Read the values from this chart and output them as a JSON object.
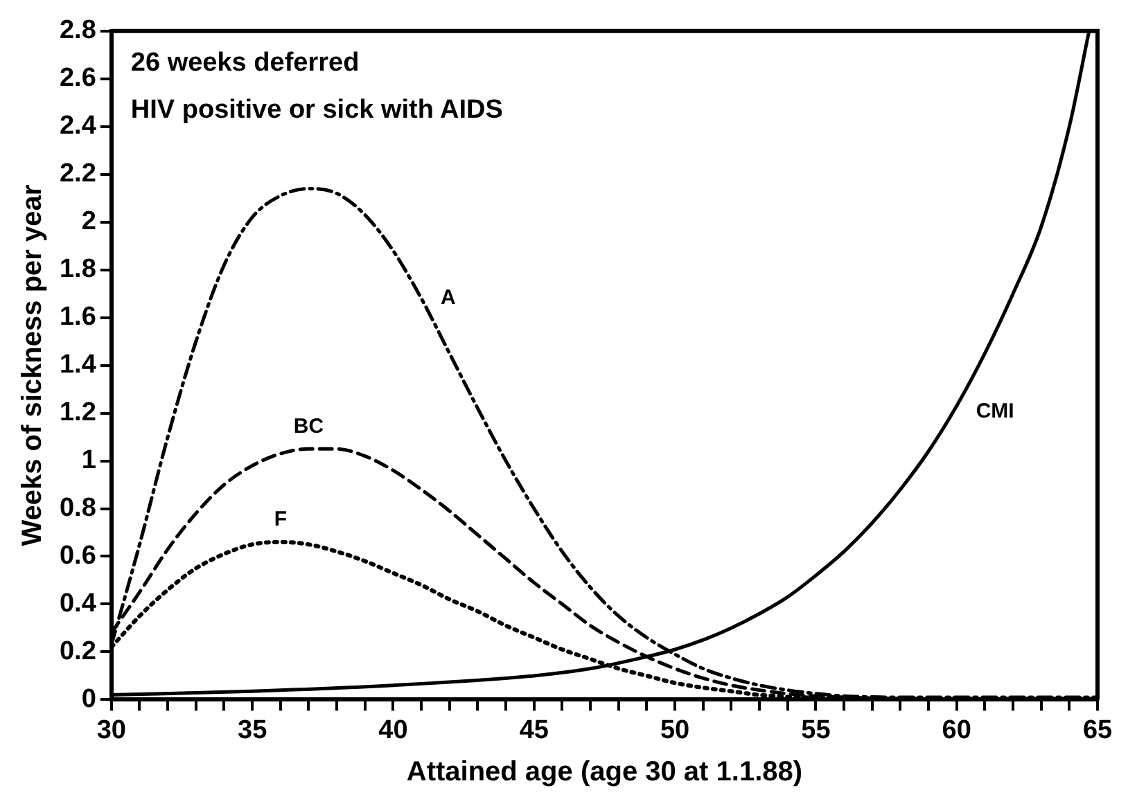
{
  "chart_data": {
    "type": "line",
    "xlabel": "Attained age (age 30 at 1.1.88)",
    "ylabel": "Weeks of sickness per year",
    "annotations": [
      "26 weeks deferred",
      "HIV positive or sick with AIDS"
    ],
    "series": [
      {
        "name": "A",
        "color": "#000000",
        "line_style": "dashed",
        "x": [
          30,
          31,
          32,
          33,
          34,
          35,
          36,
          37,
          38,
          39,
          40,
          41,
          42,
          43,
          44,
          45,
          46,
          47,
          48,
          49,
          50,
          51,
          52,
          53,
          54,
          55,
          56,
          58,
          60,
          65
        ],
        "values": [
          0.23,
          0.65,
          1.1,
          1.5,
          1.82,
          2.02,
          2.11,
          2.14,
          2.12,
          2.03,
          1.88,
          1.68,
          1.45,
          1.22,
          1.0,
          0.8,
          0.62,
          0.47,
          0.35,
          0.26,
          0.19,
          0.13,
          0.09,
          0.06,
          0.04,
          0.025,
          0.015,
          0.01,
          0.01,
          0.01
        ]
      },
      {
        "name": "BC",
        "color": "#000000",
        "line_style": "dashed",
        "x": [
          30,
          31,
          32,
          33,
          34,
          35,
          36,
          37,
          38,
          39,
          40,
          41,
          42,
          43,
          44,
          45,
          46,
          47,
          48,
          49,
          50,
          51,
          52,
          53,
          54,
          55,
          56,
          58,
          60,
          65
        ],
        "values": [
          0.28,
          0.45,
          0.63,
          0.78,
          0.9,
          0.98,
          1.03,
          1.05,
          1.05,
          1.02,
          0.96,
          0.88,
          0.79,
          0.69,
          0.59,
          0.49,
          0.4,
          0.31,
          0.24,
          0.18,
          0.13,
          0.09,
          0.06,
          0.04,
          0.025,
          0.015,
          0.01,
          0.005,
          0.005,
          0.005
        ]
      },
      {
        "name": "F",
        "color": "#000000",
        "line_style": "dotted",
        "x": [
          30,
          31,
          32,
          33,
          34,
          35,
          36,
          37,
          38,
          39,
          40,
          41,
          42,
          43,
          44,
          45,
          46,
          47,
          48,
          49,
          50,
          51,
          52,
          53,
          54,
          55,
          56,
          58,
          60,
          65
        ],
        "values": [
          0.22,
          0.35,
          0.46,
          0.55,
          0.61,
          0.65,
          0.66,
          0.65,
          0.62,
          0.58,
          0.53,
          0.48,
          0.42,
          0.37,
          0.31,
          0.26,
          0.21,
          0.17,
          0.13,
          0.1,
          0.07,
          0.05,
          0.035,
          0.02,
          0.012,
          0.008,
          0.005,
          0.003,
          0.002,
          0.002
        ]
      },
      {
        "name": "CMI",
        "color": "#000000",
        "line_style": "solid",
        "x": [
          30,
          35,
          40,
          45,
          47,
          49,
          50,
          51,
          52,
          53,
          54,
          55,
          56,
          57,
          58,
          59,
          60,
          61,
          62,
          63,
          64,
          64.7
        ],
        "values": [
          0.02,
          0.035,
          0.06,
          0.1,
          0.13,
          0.18,
          0.21,
          0.25,
          0.3,
          0.36,
          0.43,
          0.52,
          0.62,
          0.74,
          0.88,
          1.04,
          1.23,
          1.45,
          1.7,
          1.98,
          2.4,
          2.8
        ]
      }
    ],
    "xlim": [
      30,
      65
    ],
    "xticks": [
      30,
      {
        "value": 31,
        "label": null
      },
      {
        "value": 32,
        "label": null
      },
      {
        "value": 33,
        "label": null
      },
      {
        "value": 34,
        "label": null
      },
      35,
      {
        "value": 36,
        "label": null
      },
      {
        "value": 37,
        "label": null
      },
      {
        "value": 38,
        "label": null
      },
      {
        "value": 39,
        "label": null
      },
      40,
      {
        "value": 41,
        "label": null
      },
      {
        "value": 42,
        "label": null
      },
      {
        "value": 43,
        "label": null
      },
      {
        "value": 44,
        "label": null
      },
      45,
      {
        "value": 46,
        "label": null
      },
      {
        "value": 47,
        "label": null
      },
      {
        "value": 48,
        "label": null
      },
      {
        "value": 49,
        "label": null
      },
      50,
      {
        "value": 51,
        "label": null
      },
      {
        "value": 52,
        "label": null
      },
      {
        "value": 53,
        "label": null
      },
      {
        "value": 54,
        "label": null
      },
      55,
      {
        "value": 56,
        "label": null
      },
      {
        "value": 57,
        "label": null
      },
      {
        "value": 58,
        "label": null
      },
      {
        "value": 59,
        "label": null
      },
      60,
      {
        "value": 61,
        "label": null
      },
      {
        "value": 62,
        "label": null
      },
      {
        "value": 63,
        "label": null
      },
      {
        "value": 64,
        "label": null
      },
      65
    ],
    "ylim": [
      0,
      2.8
    ],
    "yticks": [
      0,
      0.2,
      0.4,
      0.6,
      0.8,
      1,
      1.2,
      1.4,
      1.6,
      1.8,
      2,
      2.2,
      2.4,
      2.6,
      2.8
    ],
    "grid": false,
    "legend": false,
    "marker": "none"
  }
}
